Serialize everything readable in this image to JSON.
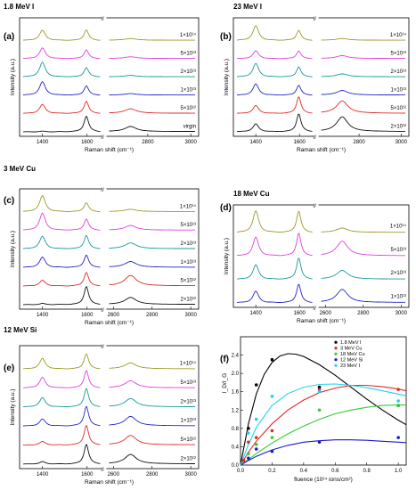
{
  "figure": "Raman spectra panels",
  "chart_data": [
    {
      "type": "line",
      "letter": "(a)",
      "title": "1.8 MeV I",
      "xlabel": "Raman shift (cm⁻¹)",
      "ylabel": "Intensity (a.u.)",
      "xticks_left": [
        "1400",
        "1600"
      ],
      "xticks_right": [
        "2800",
        "3000"
      ],
      "series": [
        {
          "label": "1×10¹⁴",
          "color": "#9b9b2a",
          "peaks": [
            0.9,
            0.95,
            0.15
          ]
        },
        {
          "label": "5×10¹³",
          "color": "#e040e0",
          "peaks": [
            0.95,
            0.8,
            0.15
          ]
        },
        {
          "label": "2×10¹³",
          "color": "#1a9a9a",
          "peaks": [
            1.3,
            0.85,
            0.12
          ]
        },
        {
          "label": "1×10¹³",
          "color": "#2424c8",
          "peaks": [
            1.2,
            0.85,
            0.12
          ]
        },
        {
          "label": "5×10¹²",
          "color": "#e02a2a",
          "peaks": [
            0.8,
            1.1,
            0.4
          ]
        },
        {
          "label": "virgin",
          "color": "#111111",
          "peaks": [
            0.05,
            1.4,
            0.45
          ]
        }
      ]
    },
    {
      "type": "line",
      "letter": "(b)",
      "title": "23 MeV I",
      "xlabel": "Raman shift (cm⁻¹)",
      "ylabel": "Intensity (a.u.)",
      "xticks_left": [
        "1400",
        "1600"
      ],
      "xticks_right": [
        "2800",
        "3000"
      ],
      "series": [
        {
          "label": "1×10¹⁴",
          "color": "#9b9b2a",
          "peaks": [
            1.3,
            0.9,
            0.15
          ]
        },
        {
          "label": "5×10¹³",
          "color": "#e040e0",
          "peaks": [
            0.7,
            0.7,
            0.25
          ]
        },
        {
          "label": "2×10¹³",
          "color": "#1a9a9a",
          "peaks": [
            1.2,
            0.9,
            0.25
          ]
        },
        {
          "label": "1×10¹³",
          "color": "#2424c8",
          "peaks": [
            1.0,
            0.9,
            0.4
          ]
        },
        {
          "label": "5×10¹²",
          "color": "#e02a2a",
          "peaks": [
            0.7,
            1.5,
            1.1
          ]
        },
        {
          "label": "2×10¹²",
          "color": "#111111",
          "peaks": [
            0.7,
            1.6,
            1.3
          ]
        }
      ]
    },
    {
      "type": "line",
      "letter": "(c)",
      "title": "3 MeV Cu",
      "xlabel": "Raman shift (cm⁻¹)",
      "ylabel": "Intensity (a.u.)",
      "xticks_left": [
        "1400",
        "1600"
      ],
      "xticks_right": [
        "2600",
        "2800",
        "3000"
      ],
      "series": [
        {
          "label": "1×10¹⁴",
          "color": "#9b9b2a",
          "peaks": [
            1.4,
            0.8,
            0.2
          ]
        },
        {
          "label": "5×10¹³",
          "color": "#e040e0",
          "peaks": [
            1.5,
            1.0,
            0.4
          ]
        },
        {
          "label": "2×10¹³",
          "color": "#1a9a9a",
          "peaks": [
            1.1,
            1.2,
            0.5
          ]
        },
        {
          "label": "1×10¹³",
          "color": "#2424c8",
          "peaks": [
            0.9,
            1.1,
            0.5
          ]
        },
        {
          "label": "5×10¹²",
          "color": "#e02a2a",
          "peaks": [
            0.5,
            1.2,
            0.9
          ]
        },
        {
          "label": "2×10¹²",
          "color": "#111111",
          "peaks": [
            0.1,
            1.6,
            0.6
          ]
        }
      ]
    },
    {
      "type": "line",
      "letter": "(d)",
      "title": "18 MeV Cu",
      "xlabel": "Raman shift (cm⁻¹)",
      "ylabel": "Intensity (a.u.)",
      "xticks_left": [
        "1400",
        "1600"
      ],
      "xticks_right": [
        "2600",
        "2800",
        "3000"
      ],
      "series": [
        {
          "label": "1×10¹⁴",
          "color": "#9b9b2a",
          "peaks": [
            1.5,
            1.5,
            0.3
          ]
        },
        {
          "label": "5×10¹³",
          "color": "#e040e0",
          "peaks": [
            1.3,
            1.6,
            1.0
          ]
        },
        {
          "label": "2×10¹³",
          "color": "#1a9a9a",
          "peaks": [
            1.0,
            1.5,
            0.6
          ]
        },
        {
          "label": "1×10¹³",
          "color": "#2424c8",
          "peaks": [
            0.8,
            1.3,
            0.9
          ]
        }
      ]
    },
    {
      "type": "line",
      "letter": "(e)",
      "title": "12 MeV Si",
      "xlabel": "Raman shift (cm⁻¹)",
      "ylabel": "Intensity (a.u.)",
      "xticks_left": [
        "1400",
        "1600"
      ],
      "xticks_right": [
        "2600",
        "2800",
        "3000"
      ],
      "series": [
        {
          "label": "1×10¹⁴",
          "color": "#9b9b2a",
          "peaks": [
            0.9,
            1.3,
            0.5
          ]
        },
        {
          "label": "5×10¹³",
          "color": "#e040e0",
          "peaks": [
            0.9,
            1.5,
            0.6
          ]
        },
        {
          "label": "2×10¹³",
          "color": "#1a9a9a",
          "peaks": [
            0.8,
            1.6,
            0.7
          ]
        },
        {
          "label": "1×10¹³",
          "color": "#2424c8",
          "peaks": [
            0.6,
            1.7,
            0.8
          ]
        },
        {
          "label": "5×10¹²",
          "color": "#e02a2a",
          "peaks": [
            0.3,
            1.7,
            0.8
          ]
        },
        {
          "label": "2×10¹²",
          "color": "#111111",
          "peaks": [
            0.2,
            1.7,
            0.8
          ]
        }
      ]
    },
    {
      "type": "scatter",
      "letter": "(f)",
      "xlabel": "fluence (10¹⁴ ions/cm²)",
      "ylabel": "I_D/I_G",
      "xlim": [
        0,
        1.05
      ],
      "ylim": [
        0,
        2.8
      ],
      "xticks": [
        "0.0",
        "0.2",
        "0.4",
        "0.6",
        "0.8",
        "1.0"
      ],
      "yticks": [
        "0.0",
        "0.4",
        "0.8",
        "1.2",
        "1.6",
        "2.0",
        "2.4"
      ],
      "series": [
        {
          "name": "1.8 MeV I",
          "color": "#000000",
          "x": [
            0.05,
            0.1,
            0.2,
            0.5,
            1.0
          ],
          "y": [
            0.8,
            1.75,
            2.3,
            1.7,
            1.3
          ]
        },
        {
          "name": "3 MeV Cu",
          "color": "#e02a2a",
          "x": [
            0.02,
            0.05,
            0.1,
            0.2,
            0.5,
            1.0
          ],
          "y": [
            0.1,
            0.5,
            0.6,
            0.75,
            1.65,
            1.65
          ]
        },
        {
          "name": "18 MeV Cu",
          "color": "#33cc33",
          "x": [
            0.05,
            0.1,
            0.2,
            0.5,
            1.0
          ],
          "y": [
            0.25,
            0.45,
            0.6,
            1.2,
            1.3
          ]
        },
        {
          "name": "12 MeV Si",
          "color": "#1a1acc",
          "x": [
            0.05,
            0.1,
            0.2,
            0.5,
            1.0
          ],
          "y": [
            0.15,
            0.35,
            0.3,
            0.5,
            0.6
          ]
        },
        {
          "name": "23 MeV I",
          "color": "#22d0ee",
          "x": [
            0.05,
            0.1,
            0.2,
            0.5,
            1.0
          ],
          "y": [
            0.7,
            1.0,
            1.5,
            1.6,
            1.4
          ]
        }
      ],
      "fits": [
        {
          "series": "1.8 MeV I",
          "color": "#000000",
          "x": [
            0.0,
            0.05,
            0.1,
            0.15,
            0.2,
            0.25,
            0.3,
            0.35,
            0.4,
            0.5,
            0.6,
            0.7,
            0.8,
            0.9,
            1.0,
            1.05
          ],
          "y": [
            0.0,
            0.9,
            1.55,
            1.98,
            2.24,
            2.38,
            2.43,
            2.42,
            2.37,
            2.19,
            1.96,
            1.7,
            1.44,
            1.2,
            0.98,
            0.88
          ]
        },
        {
          "series": "3 MeV Cu",
          "color": "#e02a2a",
          "x": [
            0.0,
            0.05,
            0.1,
            0.2,
            0.3,
            0.4,
            0.5,
            0.6,
            0.7,
            0.8,
            0.9,
            1.0,
            1.05
          ],
          "y": [
            0.0,
            0.28,
            0.52,
            0.9,
            1.2,
            1.42,
            1.58,
            1.68,
            1.74,
            1.74,
            1.71,
            1.66,
            1.62
          ]
        },
        {
          "series": "18 MeV Cu",
          "color": "#33cc33",
          "x": [
            0.0,
            0.05,
            0.1,
            0.2,
            0.3,
            0.4,
            0.5,
            0.6,
            0.7,
            0.8,
            0.9,
            1.0,
            1.05
          ],
          "y": [
            0.0,
            0.12,
            0.25,
            0.48,
            0.68,
            0.85,
            1.0,
            1.12,
            1.2,
            1.26,
            1.3,
            1.31,
            1.31
          ]
        },
        {
          "series": "12 MeV Si",
          "color": "#1a1acc",
          "x": [
            0.0,
            0.05,
            0.1,
            0.2,
            0.3,
            0.4,
            0.5,
            0.6,
            0.7,
            0.8,
            0.9,
            1.0,
            1.05
          ],
          "y": [
            0.0,
            0.1,
            0.19,
            0.33,
            0.43,
            0.5,
            0.53,
            0.55,
            0.55,
            0.54,
            0.52,
            0.5,
            0.49
          ]
        },
        {
          "series": "23 MeV I",
          "color": "#22d0ee",
          "x": [
            0.0,
            0.05,
            0.1,
            0.2,
            0.3,
            0.4,
            0.5,
            0.6,
            0.7,
            0.8,
            0.9,
            1.0,
            1.05
          ],
          "y": [
            0.0,
            0.45,
            0.82,
            1.3,
            1.56,
            1.7,
            1.76,
            1.77,
            1.74,
            1.69,
            1.62,
            1.55,
            1.51
          ]
        }
      ]
    }
  ]
}
